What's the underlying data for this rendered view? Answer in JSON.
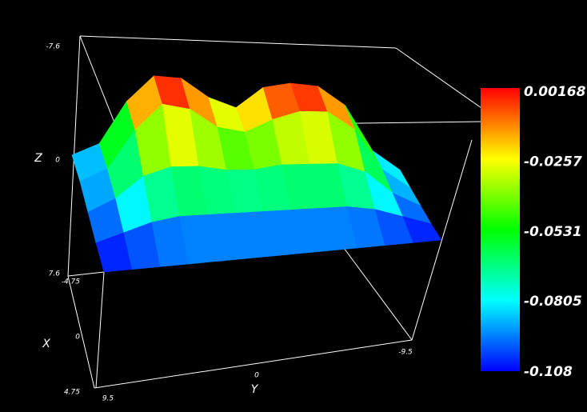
{
  "chart_data": {
    "type": "surface",
    "axis_titles": {
      "x": "X",
      "y": "Y",
      "z": "Z"
    },
    "xlim": [
      -4.75,
      4.75
    ],
    "xticks": [
      -4.75,
      0,
      4.75
    ],
    "ylim": [
      9.5,
      -9.5
    ],
    "yticks": [
      9.5,
      0,
      -9.5
    ],
    "zlim": [
      -7.6,
      7.6
    ],
    "zticks": [
      -7.6,
      0,
      7.6
    ],
    "x": [
      -4.75,
      -2.375,
      0,
      2.375,
      4.75
    ],
    "y": [
      9.5,
      7.917,
      6.333,
      4.75,
      3.167,
      1.583,
      0,
      -1.583,
      -3.167,
      -4.75,
      -6.333,
      -7.917,
      -9.5
    ],
    "values": [
      [
        -0.095,
        -0.08,
        -0.03,
        0.001,
        0.0,
        -0.02,
        -0.03,
        -0.005,
        0.00168,
        0.0,
        -0.02,
        -0.07,
        -0.09
      ],
      [
        -0.095,
        -0.08,
        -0.035,
        -0.005,
        -0.01,
        -0.03,
        -0.035,
        -0.02,
        -0.01,
        -0.01,
        -0.03,
        -0.075,
        -0.095
      ],
      [
        -0.1,
        -0.085,
        -0.06,
        -0.05,
        -0.05,
        -0.055,
        -0.055,
        -0.05,
        -0.05,
        -0.05,
        -0.06,
        -0.085,
        -0.1
      ],
      [
        -0.105,
        -0.095,
        -0.085,
        -0.08,
        -0.08,
        -0.08,
        -0.08,
        -0.08,
        -0.08,
        -0.08,
        -0.085,
        -0.095,
        -0.105
      ],
      [
        -0.108,
        -0.108,
        -0.108,
        -0.108,
        -0.108,
        -0.108,
        -0.108,
        -0.108,
        -0.108,
        -0.108,
        -0.108,
        -0.108,
        -0.108
      ]
    ],
    "colormap": [
      "#0000ff",
      "#00ffff",
      "#00ff00",
      "#ffff00",
      "#ff0000"
    ],
    "clim": [
      -0.108,
      0.00168
    ],
    "cticks": [
      0.00168,
      -0.0257,
      -0.0531,
      -0.0805,
      -0.108
    ]
  }
}
